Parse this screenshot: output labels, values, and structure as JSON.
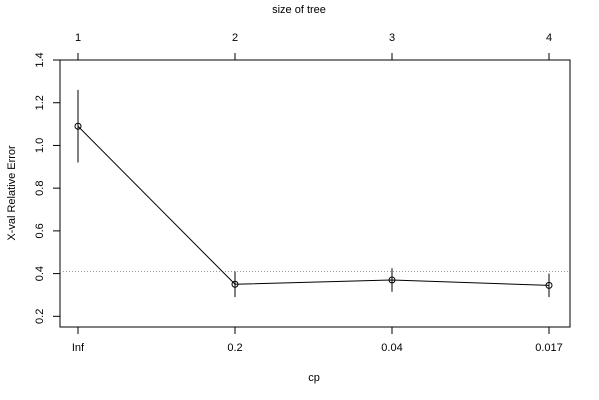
{
  "chart_data": {
    "type": "line",
    "x_label": "cp",
    "y_label": "X-val Relative Error",
    "top_label": "size of tree",
    "categories": [
      "Inf",
      "0.2",
      "0.04",
      "0.017"
    ],
    "top_categories": [
      "1",
      "2",
      "3",
      "4"
    ],
    "values": [
      1.09,
      0.35,
      0.37,
      0.345
    ],
    "errors": [
      0.17,
      0.06,
      0.055,
      0.055
    ],
    "hline": 0.41,
    "color": "#000000",
    "ylim": [
      0.15,
      1.4
    ],
    "yticks": [
      {
        "value": 0.2,
        "label": "0.2"
      },
      {
        "value": 0.4,
        "label": "0.4"
      },
      {
        "value": 0.6,
        "label": "0.6"
      },
      {
        "value": 0.8,
        "label": "0.8"
      },
      {
        "value": 1.0,
        "label": "1.0"
      },
      {
        "value": 1.2,
        "label": "1.2"
      },
      {
        "value": 1.4,
        "label": "1.4"
      }
    ]
  }
}
